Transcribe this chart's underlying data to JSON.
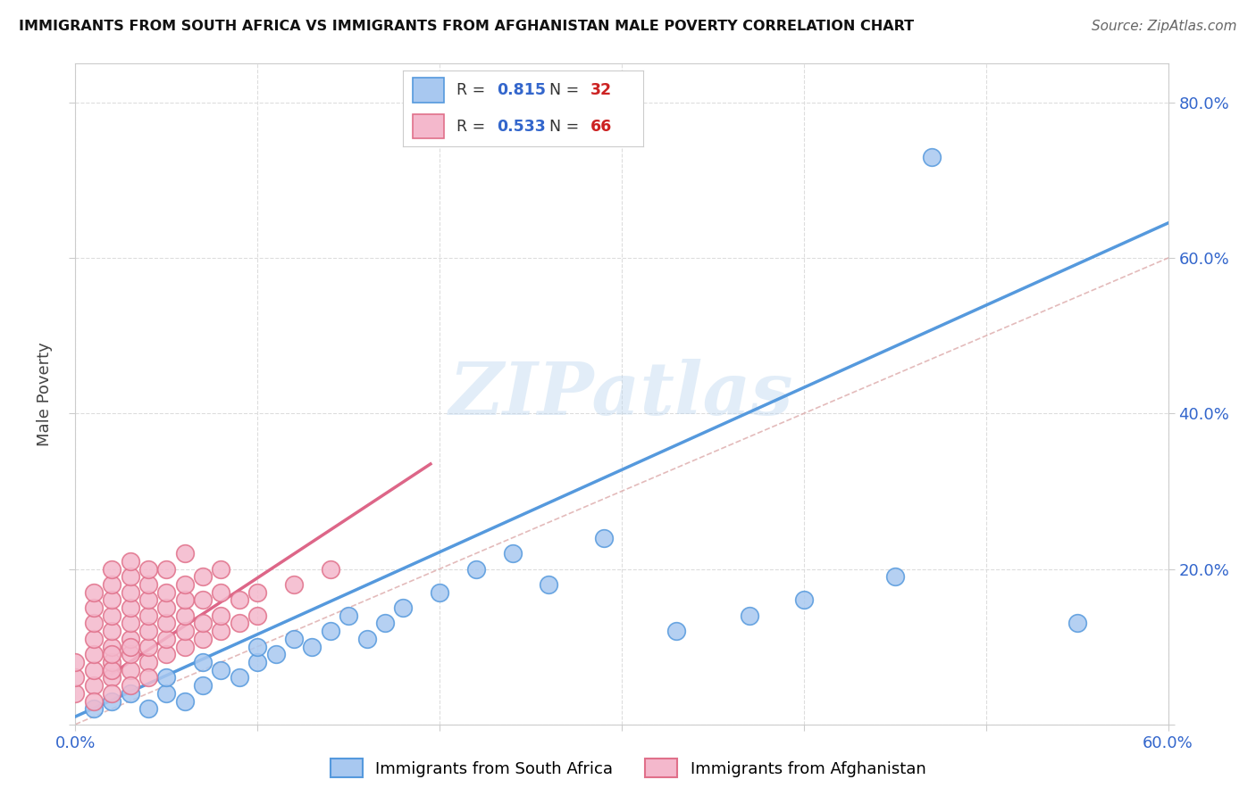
{
  "title": "IMMIGRANTS FROM SOUTH AFRICA VS IMMIGRANTS FROM AFGHANISTAN MALE POVERTY CORRELATION CHART",
  "source": "Source: ZipAtlas.com",
  "ylabel": "Male Poverty",
  "xlim": [
    0,
    0.6
  ],
  "ylim": [
    0,
    0.85
  ],
  "legend_r1_label": "R = ",
  "legend_r1_val": "0.815",
  "legend_n1_label": "  N = ",
  "legend_n1_val": "32",
  "legend_r2_label": "R = ",
  "legend_r2_val": "0.533",
  "legend_n2_label": "  N = ",
  "legend_n2_val": "66",
  "color_blue_fill": "#a8c8f0",
  "color_blue_edge": "#5599dd",
  "color_pink_fill": "#f4b8cc",
  "color_pink_edge": "#e0708a",
  "color_blue_text": "#3366cc",
  "color_red_text": "#cc2222",
  "line_blue": "#5599dd",
  "line_pink": "#dd6688",
  "line_diag_color": "#ddaaaa",
  "watermark": "ZIPatlas",
  "sa_line_x0": 0.0,
  "sa_line_y0": 0.01,
  "sa_line_x1": 0.6,
  "sa_line_y1": 0.645,
  "af_line_x0": 0.02,
  "af_line_y0": 0.065,
  "af_line_x1": 0.195,
  "af_line_y1": 0.335,
  "sa_x": [
    0.01,
    0.02,
    0.03,
    0.04,
    0.05,
    0.05,
    0.06,
    0.07,
    0.07,
    0.08,
    0.09,
    0.1,
    0.1,
    0.11,
    0.12,
    0.13,
    0.14,
    0.15,
    0.16,
    0.17,
    0.18,
    0.2,
    0.22,
    0.24,
    0.26,
    0.29,
    0.33,
    0.37,
    0.4,
    0.45,
    0.47,
    0.55
  ],
  "sa_y": [
    0.02,
    0.03,
    0.04,
    0.02,
    0.04,
    0.06,
    0.03,
    0.05,
    0.08,
    0.07,
    0.06,
    0.08,
    0.1,
    0.09,
    0.11,
    0.1,
    0.12,
    0.14,
    0.11,
    0.13,
    0.15,
    0.17,
    0.2,
    0.22,
    0.18,
    0.24,
    0.12,
    0.14,
    0.16,
    0.19,
    0.73,
    0.13
  ],
  "af_x": [
    0.0,
    0.0,
    0.0,
    0.01,
    0.01,
    0.01,
    0.01,
    0.01,
    0.01,
    0.01,
    0.01,
    0.02,
    0.02,
    0.02,
    0.02,
    0.02,
    0.02,
    0.02,
    0.02,
    0.02,
    0.02,
    0.02,
    0.03,
    0.03,
    0.03,
    0.03,
    0.03,
    0.03,
    0.03,
    0.03,
    0.03,
    0.03,
    0.04,
    0.04,
    0.04,
    0.04,
    0.04,
    0.04,
    0.04,
    0.04,
    0.05,
    0.05,
    0.05,
    0.05,
    0.05,
    0.05,
    0.06,
    0.06,
    0.06,
    0.06,
    0.06,
    0.06,
    0.07,
    0.07,
    0.07,
    0.07,
    0.08,
    0.08,
    0.08,
    0.08,
    0.09,
    0.09,
    0.1,
    0.1,
    0.12,
    0.14
  ],
  "af_y": [
    0.04,
    0.06,
    0.08,
    0.05,
    0.07,
    0.09,
    0.11,
    0.13,
    0.15,
    0.17,
    0.03,
    0.06,
    0.08,
    0.1,
    0.12,
    0.14,
    0.16,
    0.18,
    0.07,
    0.09,
    0.2,
    0.04,
    0.07,
    0.09,
    0.11,
    0.13,
    0.15,
    0.17,
    0.05,
    0.19,
    0.21,
    0.1,
    0.08,
    0.1,
    0.12,
    0.14,
    0.16,
    0.18,
    0.2,
    0.06,
    0.09,
    0.11,
    0.13,
    0.15,
    0.17,
    0.2,
    0.1,
    0.12,
    0.14,
    0.16,
    0.18,
    0.22,
    0.11,
    0.13,
    0.16,
    0.19,
    0.12,
    0.14,
    0.17,
    0.2,
    0.13,
    0.16,
    0.14,
    0.17,
    0.18,
    0.2
  ]
}
